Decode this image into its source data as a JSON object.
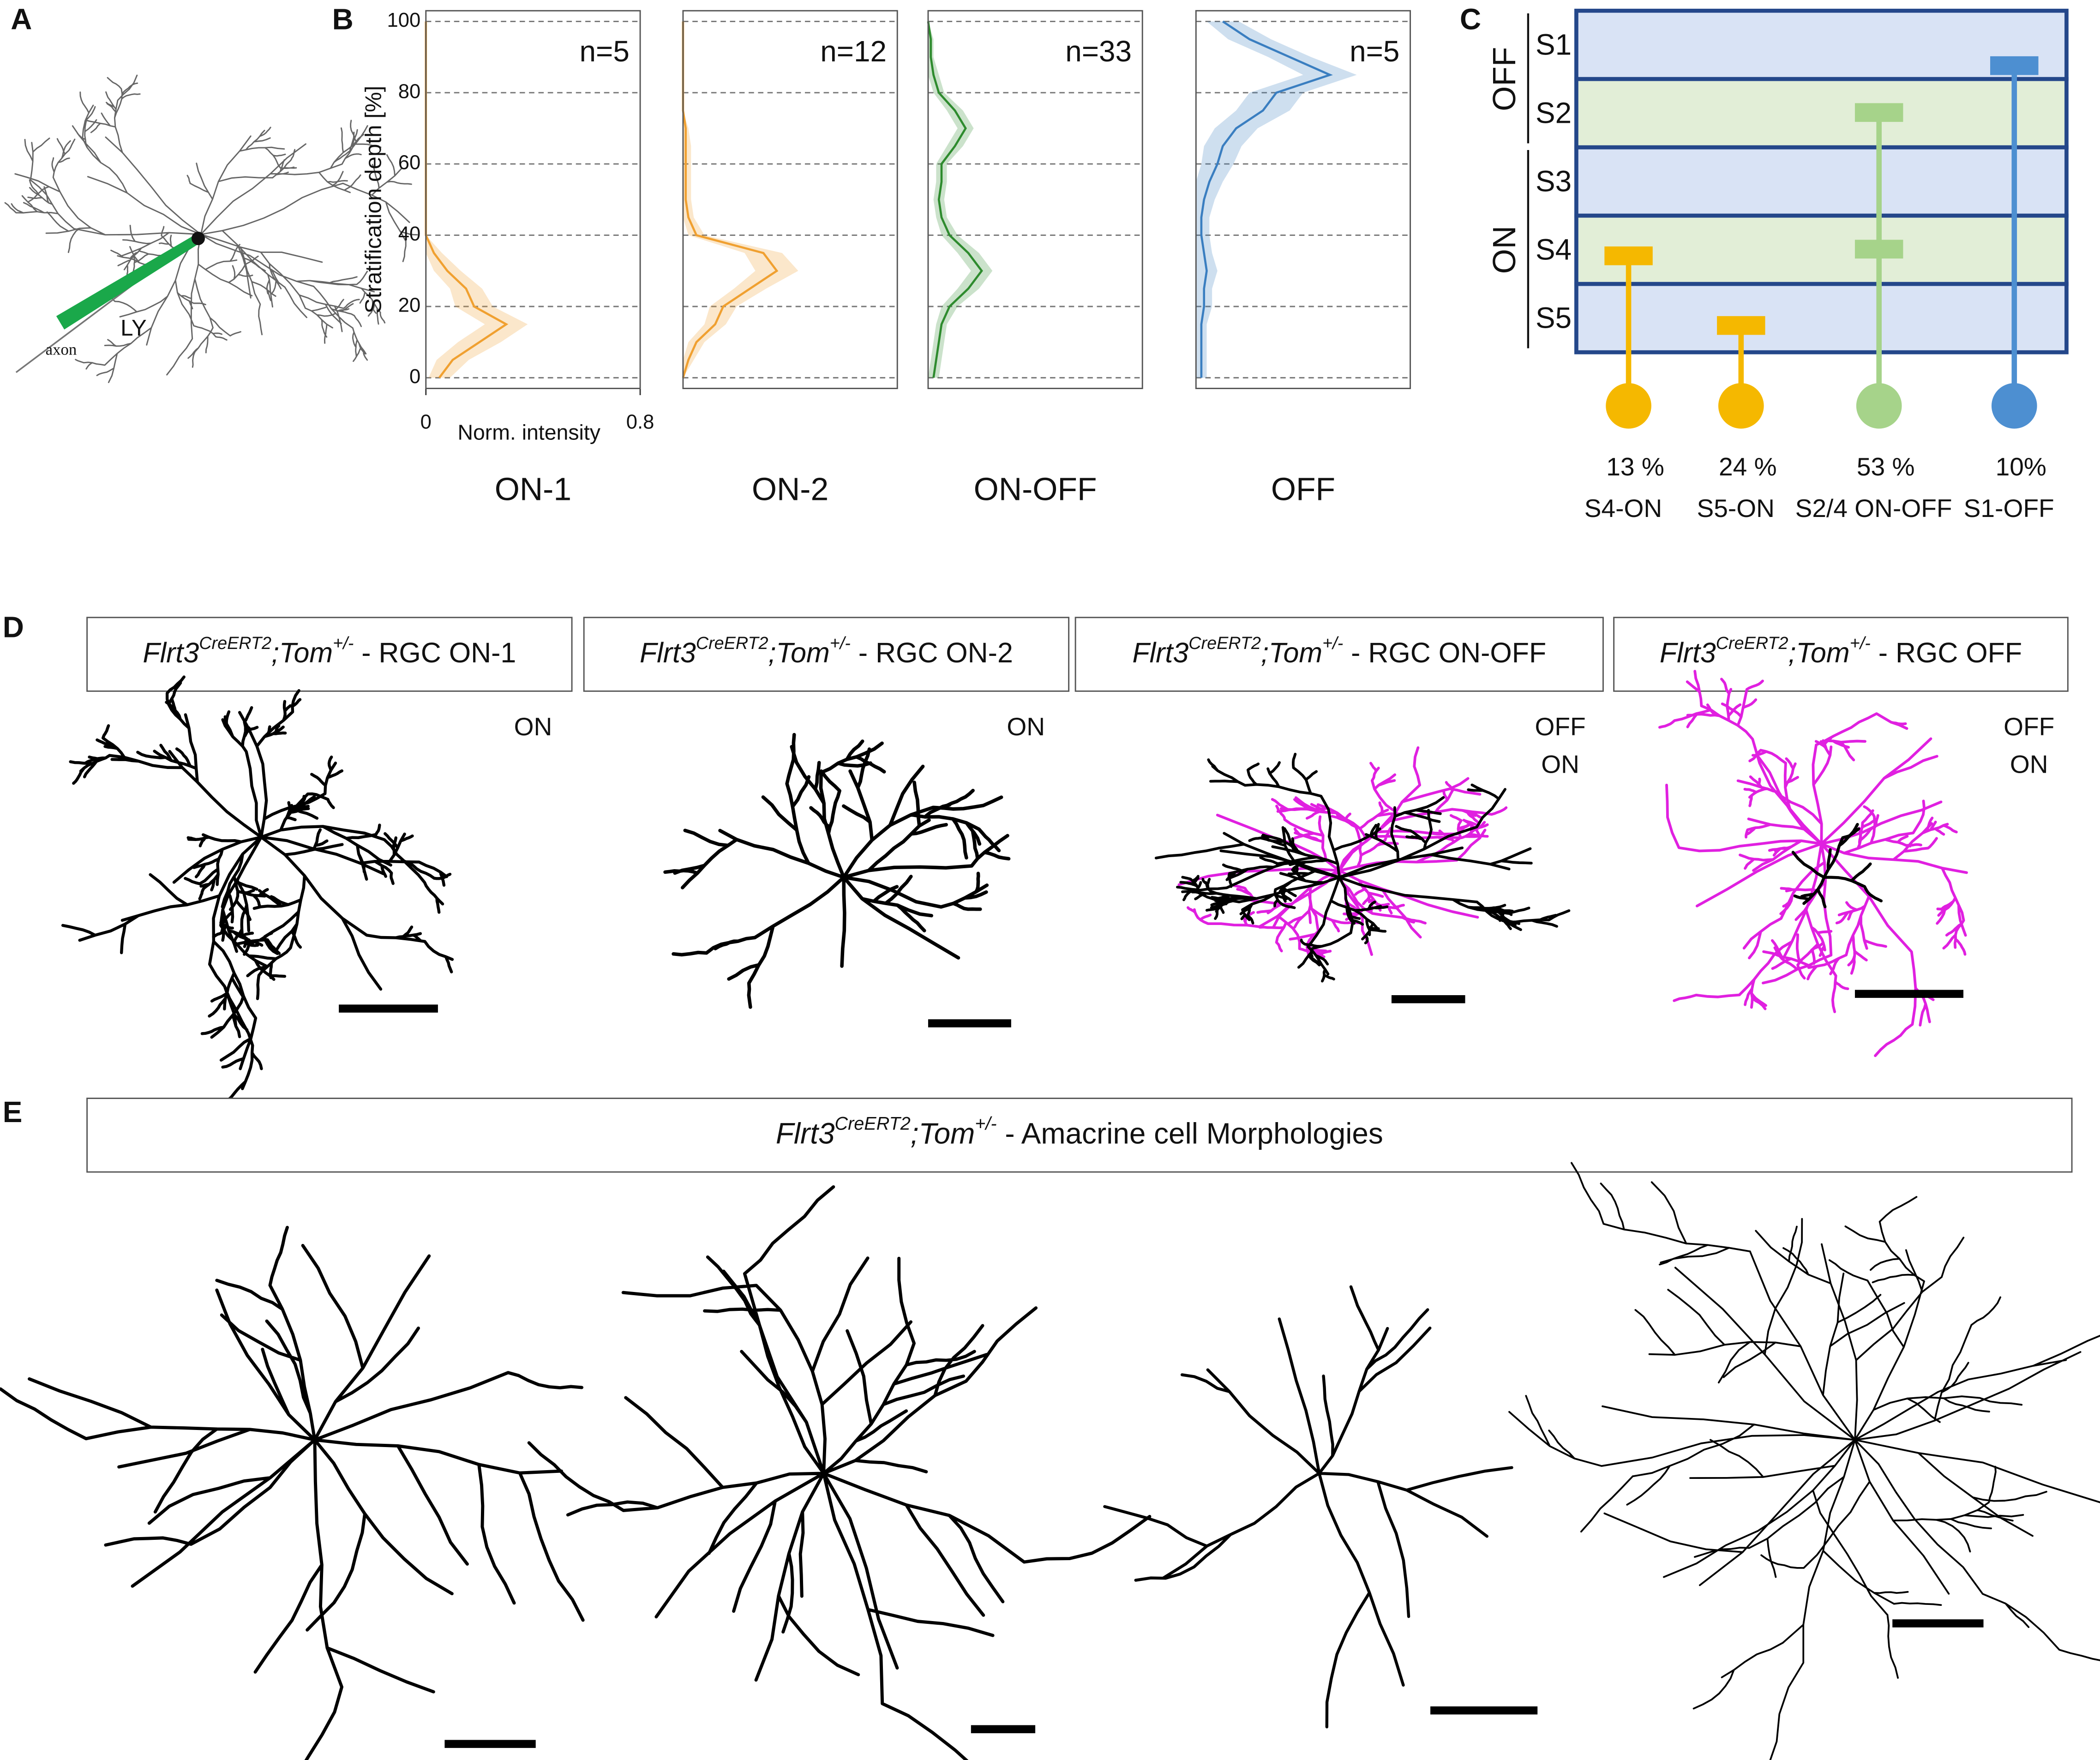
{
  "panel_labels": [
    "A",
    "B",
    "C",
    "D",
    "E"
  ],
  "panel_a": {
    "pipette_label": "LY",
    "axon_label": "axon"
  },
  "chart_data": [
    {
      "type": "line",
      "title": "ON-1",
      "annotation": "n=5",
      "ylabel": "Stratification depth [%]",
      "xlabel": "Norm. intensity",
      "xlim": [
        0,
        0.8
      ],
      "ylim": [
        -3,
        103
      ],
      "xticks": [
        0,
        0.8
      ],
      "yticks": [
        0,
        20,
        40,
        60,
        80,
        100
      ],
      "grid": true,
      "y": [
        0,
        5,
        10,
        15,
        20,
        25,
        30,
        35,
        40,
        45,
        50,
        55,
        60,
        65,
        70,
        75,
        80,
        85,
        90,
        95,
        100
      ],
      "series": [
        {
          "color": "#f0a030",
          "values": [
            0.05,
            0.1,
            0.2,
            0.3,
            0.18,
            0.15,
            0.08,
            0.03,
            0,
            0,
            0,
            0,
            0,
            0,
            0,
            0,
            0,
            0,
            0,
            0,
            0
          ],
          "errors": [
            0.04,
            0.06,
            0.08,
            0.08,
            0.07,
            0.06,
            0.05,
            0.03,
            0,
            0,
            0,
            0,
            0,
            0,
            0,
            0,
            0,
            0,
            0,
            0,
            0
          ]
        }
      ]
    },
    {
      "type": "line",
      "title": "ON-2",
      "annotation": "n=12",
      "xlim": [
        0,
        0.8
      ],
      "ylim": [
        -3,
        103
      ],
      "yticks": [
        0,
        20,
        40,
        60,
        80,
        100
      ],
      "grid": true,
      "y": [
        0,
        5,
        10,
        15,
        20,
        25,
        30,
        35,
        40,
        45,
        50,
        55,
        60,
        65,
        70,
        75,
        80,
        85,
        90,
        95,
        100
      ],
      "series": [
        {
          "color": "#f0a030",
          "values": [
            0,
            0.02,
            0.05,
            0.12,
            0.15,
            0.25,
            0.35,
            0.3,
            0.05,
            0.02,
            0.01,
            0.01,
            0.01,
            0.01,
            0.01,
            0,
            0,
            0,
            0,
            0,
            0
          ],
          "errors": [
            0,
            0.02,
            0.03,
            0.04,
            0.05,
            0.06,
            0.08,
            0.07,
            0.03,
            0.02,
            0.02,
            0.02,
            0.02,
            0.02,
            0.01,
            0,
            0,
            0,
            0,
            0,
            0
          ]
        }
      ]
    },
    {
      "type": "line",
      "title": "ON-OFF",
      "annotation": "n=33",
      "xlim": [
        0,
        0.8
      ],
      "ylim": [
        -3,
        103
      ],
      "yticks": [
        0,
        20,
        40,
        60,
        80,
        100
      ],
      "grid": true,
      "y": [
        0,
        5,
        10,
        15,
        20,
        25,
        30,
        35,
        40,
        45,
        50,
        55,
        60,
        65,
        70,
        75,
        80,
        85,
        90,
        95,
        100
      ],
      "series": [
        {
          "color": "#2e8b2e",
          "values": [
            0.02,
            0.03,
            0.04,
            0.05,
            0.08,
            0.15,
            0.2,
            0.15,
            0.08,
            0.05,
            0.04,
            0.05,
            0.05,
            0.1,
            0.14,
            0.1,
            0.04,
            0.02,
            0.01,
            0.01,
            0
          ],
          "errors": [
            0.02,
            0.02,
            0.02,
            0.02,
            0.03,
            0.04,
            0.04,
            0.04,
            0.03,
            0.02,
            0.02,
            0.02,
            0.02,
            0.03,
            0.03,
            0.03,
            0.02,
            0.02,
            0.01,
            0.01,
            0
          ]
        }
      ]
    },
    {
      "type": "line",
      "title": "OFF",
      "annotation": "n=5",
      "xlim": [
        0,
        0.8
      ],
      "ylim": [
        -3,
        103
      ],
      "yticks": [
        0,
        20,
        40,
        60,
        80,
        100
      ],
      "grid": true,
      "y": [
        0,
        5,
        10,
        15,
        20,
        25,
        30,
        35,
        40,
        45,
        50,
        55,
        60,
        65,
        70,
        75,
        80,
        85,
        90,
        95,
        100
      ],
      "series": [
        {
          "color": "#3a7ec0",
          "values": [
            0.02,
            0.02,
            0.02,
            0.02,
            0.03,
            0.03,
            0.04,
            0.03,
            0.02,
            0.02,
            0.03,
            0.05,
            0.08,
            0.1,
            0.15,
            0.25,
            0.3,
            0.5,
            0.35,
            0.2,
            0.1
          ],
          "errors": [
            0.02,
            0.02,
            0.02,
            0.02,
            0.03,
            0.03,
            0.04,
            0.03,
            0.03,
            0.03,
            0.04,
            0.05,
            0.06,
            0.07,
            0.08,
            0.1,
            0.1,
            0.1,
            0.08,
            0.08,
            0.06
          ]
        }
      ]
    }
  ],
  "panel_c": {
    "groups": [
      {
        "label": "OFF",
        "strata": [
          "S1",
          "S2"
        ]
      },
      {
        "label": "ON",
        "strata": [
          "S3",
          "S4",
          "S5"
        ]
      }
    ],
    "cells": [
      {
        "percent": "13 %",
        "label": "S4-ON",
        "color": "#f5b800"
      },
      {
        "percent": "24 %",
        "label": "S5-ON",
        "color": "#f5b800"
      },
      {
        "percent": "53 %",
        "label": "S2/4 ON-OFF",
        "color": "#a6d38a"
      },
      {
        "percent": "10%",
        "label": "S1-OFF",
        "color": "#4d8fd1"
      }
    ]
  },
  "panel_d": {
    "titles": [
      {
        "gene": "Flrt3",
        "gene_sup": "CreERT2",
        "reporter": ";Tom",
        "reporter_sup": "+/-",
        "suffix": " - RGC ON-1"
      },
      {
        "gene": "Flrt3",
        "gene_sup": "CreERT2",
        "reporter": ";Tom",
        "reporter_sup": "+/-",
        "suffix": " - RGC ON-2"
      },
      {
        "gene": "Flrt3",
        "gene_sup": "CreERT2",
        "reporter": ";Tom",
        "reporter_sup": "+/-",
        "suffix": " - RGC ON-OFF"
      },
      {
        "gene": "Flrt3",
        "gene_sup": "CreERT2",
        "reporter": ";Tom",
        "reporter_sup": "+/-",
        "suffix": " - RGC OFF"
      }
    ],
    "layer_labels": [
      [
        "ON"
      ],
      [
        "ON"
      ],
      [
        "OFF",
        "ON"
      ],
      [
        "OFF",
        "ON"
      ]
    ]
  },
  "panel_e": {
    "title": {
      "gene": "Flrt3",
      "gene_sup": "CreERT2",
      "reporter": ";Tom",
      "reporter_sup": "+/-",
      "suffix": " - Amacrine cell Morphologies"
    }
  }
}
